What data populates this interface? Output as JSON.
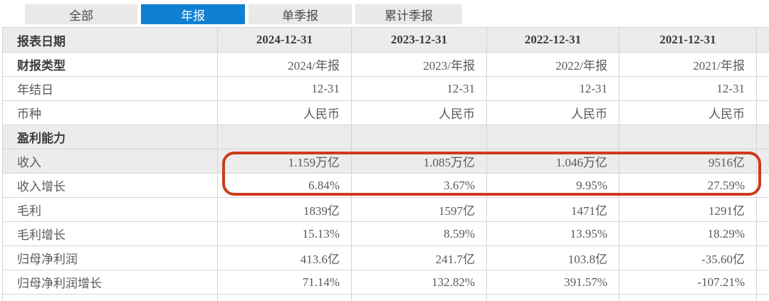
{
  "tabs": [
    {
      "label": "全部",
      "active": false
    },
    {
      "label": "年报",
      "active": true
    },
    {
      "label": "单季报",
      "active": false
    },
    {
      "label": "累计季报",
      "active": false
    }
  ],
  "table": {
    "header": {
      "label": "报表日期",
      "dates": [
        "2024-12-31",
        "2023-12-31",
        "2022-12-31",
        "2021-12-31"
      ]
    },
    "rows": [
      {
        "label": "财报类型",
        "values": [
          "2024/年报",
          "2023/年报",
          "2022/年报",
          "2021/年报"
        ]
      },
      {
        "label": "年结日",
        "values": [
          "12-31",
          "12-31",
          "12-31",
          "12-31"
        ]
      },
      {
        "label": "币种",
        "values": [
          "人民币",
          "人民币",
          "人民币",
          "人民币"
        ]
      },
      {
        "label": "盈利能力",
        "values": [
          "",
          "",
          "",
          ""
        ]
      },
      {
        "label": "收入",
        "values": [
          "1.159万亿",
          "1.085万亿",
          "1.046万亿",
          "9516亿"
        ]
      },
      {
        "label": "收入增长",
        "values": [
          "6.84%",
          "3.67%",
          "9.95%",
          "27.59%"
        ]
      },
      {
        "label": "毛利",
        "values": [
          "1839亿",
          "1597亿",
          "1471亿",
          "1291亿"
        ]
      },
      {
        "label": "毛利增长",
        "values": [
          "15.13%",
          "8.59%",
          "13.95%",
          "18.29%"
        ]
      },
      {
        "label": "归母净利润",
        "values": [
          "413.6亿",
          "241.7亿",
          "103.8亿",
          "-35.60亿"
        ]
      },
      {
        "label": "归母净利润增长",
        "values": [
          "71.14%",
          "132.82%",
          "391.57%",
          "-107.21%"
        ]
      }
    ]
  },
  "annotation": {
    "type": "hand-drawn-oval",
    "highlighted_rows": [
      "收入",
      "收入增长"
    ],
    "color": "#cd3a1d"
  },
  "colors": {
    "active_tab": "#1180d2",
    "inactive_tab_bg": "#e9e9e9",
    "section_row_bg": "#ececec",
    "table_border": "#d4d4d4",
    "annotation_red": "#cd3a1d"
  }
}
